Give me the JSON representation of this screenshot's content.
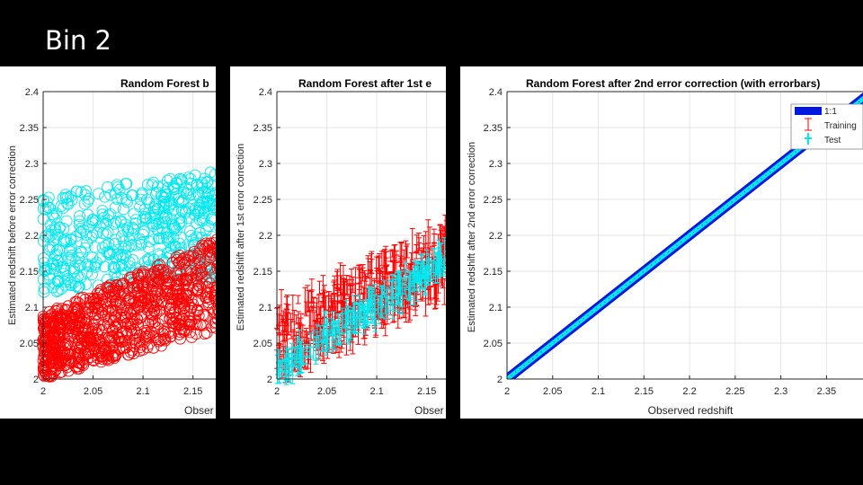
{
  "slide": {
    "title": "Bin 2"
  },
  "colors": {
    "training": "#ff0000",
    "test": "#00e8f0",
    "line": "#0018e0",
    "grid": "#e6e6e6",
    "axis": "#262626"
  },
  "chart_data": [
    {
      "type": "scatter",
      "title": "Random Forest b",
      "xlabel": "Obser",
      "ylabel": "Estimated redshift before error correction",
      "xlim": [
        2,
        2.18
      ],
      "ylim": [
        2,
        2.4
      ],
      "xticks": [
        "2",
        "2.05",
        "2.1",
        "2.15"
      ],
      "yticks": [
        "2",
        "2.05",
        "2.1",
        "2.15",
        "2.2",
        "2.25",
        "2.3",
        "2.35",
        "2.4"
      ],
      "grid": true,
      "marker": "circle",
      "series": [
        {
          "name": "Training",
          "color": "#ff0000",
          "x_range": [
            2,
            2.18
          ],
          "y_lower": [
            2.0,
            2.07
          ],
          "y_upper": [
            2.09,
            2.2
          ]
        },
        {
          "name": "Test",
          "color": "#00e8f0",
          "x_range": [
            2,
            2.18
          ],
          "y_lower": [
            2.12,
            2.14
          ],
          "y_upper": [
            2.26,
            2.29
          ]
        }
      ]
    },
    {
      "type": "scatter",
      "title": "Random Forest after 1st e",
      "xlabel": "Obser",
      "ylabel": "Estimated redshift after 1st error correction",
      "xlim": [
        2,
        2.18
      ],
      "ylim": [
        2,
        2.4
      ],
      "xticks": [
        "2",
        "2.05",
        "2.1",
        "2.15"
      ],
      "yticks": [
        "2",
        "2.05",
        "2.1",
        "2.15",
        "2.2",
        "2.25",
        "2.3",
        "2.35",
        "2.4"
      ],
      "grid": true,
      "marker": "errorbar",
      "series": [
        {
          "name": "Training",
          "color": "#ff0000",
          "x_range": [
            2,
            2.18
          ],
          "y_lower": [
            2.0,
            2.13
          ],
          "y_upper": [
            2.1,
            2.22
          ]
        },
        {
          "name": "Test",
          "color": "#00e8f0",
          "x_range": [
            2,
            2.18
          ],
          "y_lower": [
            2.0,
            2.16
          ],
          "y_upper": [
            2.03,
            2.19
          ]
        }
      ]
    },
    {
      "type": "line",
      "title": "Random Forest after 2nd error correction (with errorbars)",
      "xlabel": "Observed redshift",
      "ylabel": "Estimated redshift after 2nd error correction",
      "xlim": [
        2,
        2.39
      ],
      "ylim": [
        2,
        2.4
      ],
      "xticks": [
        "2",
        "2.05",
        "2.1",
        "2.15",
        "2.2",
        "2.25",
        "2.3",
        "2.35"
      ],
      "yticks": [
        "2",
        "2.05",
        "2.1",
        "2.15",
        "2.2",
        "2.25",
        "2.3",
        "2.35",
        "2.4"
      ],
      "grid": true,
      "legend_position": "top-right",
      "legend": [
        "1:1",
        "Training",
        "Test"
      ],
      "series": [
        {
          "name": "1:1",
          "color": "#0018e0",
          "x": [
            2,
            2.4
          ],
          "y": [
            2,
            2.4
          ]
        },
        {
          "name": "Training",
          "color": "#ff0000",
          "x": [
            2,
            2.4
          ],
          "y": [
            2,
            2.4
          ]
        },
        {
          "name": "Test",
          "color": "#00e8f0",
          "x": [
            2,
            2.4
          ],
          "y": [
            2,
            2.4
          ]
        }
      ]
    }
  ]
}
